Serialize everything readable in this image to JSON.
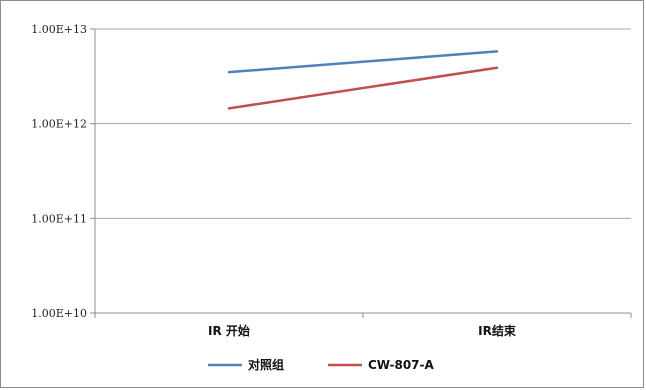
{
  "chart_data": {
    "type": "line",
    "title": "",
    "xlabel": "",
    "ylabel": "",
    "yscale": "log",
    "ylim": [
      10000000000.0,
      10000000000000.0
    ],
    "yticks": [
      10000000000.0,
      100000000000.0,
      1000000000000.0,
      10000000000000.0
    ],
    "ytick_labels": [
      "1.00E+10",
      "1.00E+11",
      "1.00E+12",
      "1.00E+13"
    ],
    "categories": [
      "IR 开始",
      "IR结束"
    ],
    "series": [
      {
        "name": "对照组",
        "values": [
          3500000000000.0,
          5800000000000.0
        ],
        "color": "#4f81bd"
      },
      {
        "name": "CW-807-A",
        "values": [
          1450000000000.0,
          3900000000000.0
        ],
        "color": "#c0504d"
      }
    ],
    "grid": true,
    "legend": "bottom"
  }
}
